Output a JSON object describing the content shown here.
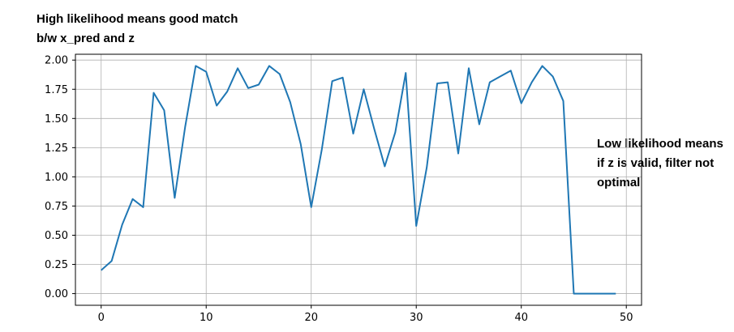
{
  "annotations": {
    "top": "High likelihood means good match b/w x_pred and z",
    "right": "Low likelihood means if z is valid, filter not optimal"
  },
  "chart_data": {
    "type": "line",
    "title": "",
    "xlabel": "",
    "ylabel": "",
    "xlim": [
      -2.45,
      51.45
    ],
    "ylim": [
      -0.1,
      2.05
    ],
    "grid": true,
    "line_color": "#1f77b4",
    "xticks": [
      0,
      10,
      20,
      30,
      40,
      50
    ],
    "xtick_labels": [
      "0",
      "10",
      "20",
      "30",
      "40",
      "50"
    ],
    "yticks": [
      0,
      0.25,
      0.5,
      0.75,
      1.0,
      1.25,
      1.5,
      1.75,
      2.0
    ],
    "ytick_labels": [
      "0.00",
      "0.25",
      "0.50",
      "0.75",
      "1.00",
      "1.25",
      "1.50",
      "1.75",
      "2.00"
    ],
    "x": [
      0,
      1,
      2,
      3,
      4,
      5,
      6,
      7,
      8,
      9,
      10,
      11,
      12,
      13,
      14,
      15,
      16,
      17,
      18,
      19,
      20,
      21,
      22,
      23,
      24,
      25,
      26,
      27,
      28,
      29,
      30,
      31,
      32,
      33,
      34,
      35,
      36,
      37,
      38,
      39,
      40,
      41,
      42,
      43,
      44,
      45,
      46,
      47,
      48,
      49
    ],
    "y": [
      0.2,
      0.28,
      0.59,
      0.81,
      0.74,
      1.72,
      1.57,
      0.82,
      1.43,
      1.95,
      1.9,
      1.61,
      1.73,
      1.93,
      1.76,
      1.79,
      1.95,
      1.88,
      1.64,
      1.28,
      0.74,
      1.23,
      1.82,
      1.85,
      1.37,
      1.75,
      1.41,
      1.09,
      1.38,
      1.89,
      0.58,
      1.08,
      1.8,
      1.81,
      1.2,
      1.93,
      1.45,
      1.81,
      1.86,
      1.91,
      1.63,
      1.81,
      1.95,
      1.86,
      1.65,
      0.0,
      0.0,
      0.0,
      0.0,
      0.0
    ]
  }
}
